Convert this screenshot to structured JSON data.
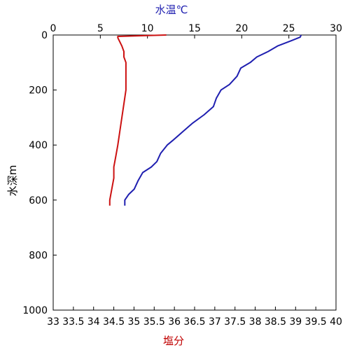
{
  "chart_data": {
    "type": "line",
    "top_axis": {
      "label": "水温℃",
      "range": [
        0,
        30
      ],
      "ticks": [
        0,
        5,
        10,
        15,
        20,
        25,
        30
      ],
      "tick_labels": [
        "0",
        "5",
        "10",
        "15",
        "20",
        "25",
        "30"
      ]
    },
    "bottom_axis": {
      "label": "塩分",
      "range": [
        33,
        40
      ],
      "ticks": [
        33,
        33.5,
        34,
        34.5,
        35,
        35.5,
        36,
        36.5,
        37,
        37.5,
        38,
        38.5,
        39,
        39.5,
        40
      ],
      "tick_labels": [
        "33",
        "33.5",
        "34",
        "34.5",
        "35",
        "35.5",
        "36",
        "36.5",
        "37",
        "37.5",
        "38",
        "38.5",
        "39",
        "39.5",
        "40"
      ]
    },
    "left_axis": {
      "label": "水深m",
      "range": [
        0,
        1000
      ],
      "inverted": true,
      "ticks": [
        0,
        200,
        400,
        600,
        800,
        1000
      ],
      "tick_labels": [
        "0",
        "200",
        "400",
        "600",
        "800",
        "1000"
      ]
    },
    "grid": false,
    "series": [
      {
        "axis": "top",
        "color": "#1f1fb0",
        "depth": [
          0,
          8,
          20,
          40,
          60,
          80,
          100,
          120,
          150,
          180,
          200,
          230,
          260,
          290,
          320,
          350,
          380,
          400,
          430,
          460,
          480,
          500,
          530,
          560,
          580,
          600,
          620
        ],
        "values": [
          26.3,
          26.2,
          25.3,
          23.8,
          22.8,
          21.6,
          20.9,
          19.9,
          19.5,
          18.7,
          17.8,
          17.3,
          17.0,
          16.0,
          14.8,
          13.8,
          12.8,
          12.1,
          11.4,
          11.0,
          10.4,
          9.5,
          9.0,
          8.6,
          8.0,
          7.6,
          7.6
        ]
      },
      {
        "axis": "bottom",
        "color": "#cc1111",
        "depth": [
          0,
          5,
          10,
          40,
          60,
          80,
          100,
          150,
          200,
          250,
          300,
          350,
          400,
          440,
          480,
          520,
          560,
          600,
          620
        ],
        "values": [
          35.8,
          34.6,
          34.6,
          34.7,
          34.75,
          34.75,
          34.8,
          34.8,
          34.8,
          34.75,
          34.7,
          34.65,
          34.6,
          34.55,
          34.5,
          34.5,
          34.45,
          34.4,
          34.4
        ]
      }
    ]
  }
}
